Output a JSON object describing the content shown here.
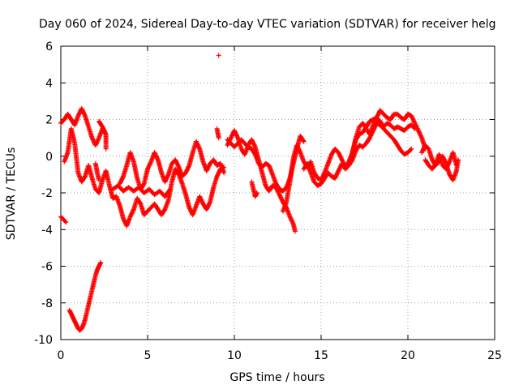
{
  "chart_data": {
    "type": "scatter",
    "title": "Day 060 of 2024, Sidereal Day-to-day VTEC variation (SDTVAR) for receiver helg",
    "xlabel": "GPS time / hours",
    "ylabel": "SDTVAR / TECUs",
    "xlim": [
      0,
      25
    ],
    "ylim": [
      -10,
      6
    ],
    "xticks": [
      0,
      5,
      10,
      15,
      20,
      25
    ],
    "yticks": [
      -10,
      -8,
      -6,
      -4,
      -2,
      0,
      2,
      4,
      6
    ],
    "grid": true,
    "marker": "+",
    "color": "#ff0000",
    "series": [
      {
        "name": "s1",
        "points": [
          [
            0.0,
            -3.3
          ],
          [
            0.1,
            -3.4
          ],
          [
            0.2,
            -3.5
          ],
          [
            0.3,
            -3.6
          ]
        ]
      },
      {
        "name": "s2",
        "points": [
          [
            0.5,
            -8.4
          ],
          [
            0.6,
            -8.6
          ],
          [
            0.7,
            -8.8
          ],
          [
            0.8,
            -9.0
          ],
          [
            0.9,
            -9.2
          ],
          [
            1.0,
            -9.4
          ],
          [
            1.1,
            -9.5
          ],
          [
            1.2,
            -9.4
          ],
          [
            1.3,
            -9.2
          ],
          [
            1.4,
            -8.9
          ],
          [
            1.5,
            -8.5
          ],
          [
            1.6,
            -8.1
          ],
          [
            1.7,
            -7.7
          ],
          [
            1.8,
            -7.3
          ],
          [
            1.9,
            -6.9
          ],
          [
            2.0,
            -6.5
          ],
          [
            2.1,
            -6.2
          ],
          [
            2.2,
            -6.0
          ],
          [
            2.3,
            -5.8
          ]
        ]
      },
      {
        "name": "s3",
        "points": [
          [
            0.0,
            1.8
          ],
          [
            0.2,
            2.0
          ],
          [
            0.4,
            2.3
          ],
          [
            0.6,
            2.0
          ],
          [
            0.8,
            1.7
          ],
          [
            1.0,
            2.2
          ],
          [
            1.2,
            2.6
          ],
          [
            1.4,
            2.2
          ],
          [
            1.6,
            1.6
          ],
          [
            1.8,
            1.0
          ],
          [
            2.0,
            0.6
          ],
          [
            2.2,
            1.0
          ],
          [
            2.4,
            1.5
          ],
          [
            2.5,
            1.3
          ]
        ]
      },
      {
        "name": "s4",
        "points": [
          [
            0.2,
            -0.3
          ],
          [
            0.4,
            0.2
          ],
          [
            0.6,
            1.5
          ],
          [
            0.8,
            0.7
          ],
          [
            1.0,
            -0.9
          ],
          [
            1.2,
            -1.4
          ],
          [
            1.4,
            -1.1
          ],
          [
            1.6,
            -0.5
          ],
          [
            1.8,
            -1.2
          ],
          [
            2.0,
            -1.8
          ],
          [
            2.2,
            -2.0
          ],
          [
            2.4,
            -1.3
          ],
          [
            2.6,
            -0.8
          ],
          [
            2.8,
            -1.6
          ],
          [
            3.0,
            -2.3
          ],
          [
            3.2,
            -2.2
          ],
          [
            3.4,
            -2.7
          ],
          [
            3.6,
            -3.4
          ],
          [
            3.8,
            -3.8
          ],
          [
            4.0,
            -3.3
          ],
          [
            4.2,
            -2.9
          ],
          [
            4.4,
            -2.3
          ],
          [
            4.6,
            -2.6
          ],
          [
            4.8,
            -3.2
          ],
          [
            5.0,
            -3.0
          ],
          [
            5.2,
            -2.8
          ],
          [
            5.4,
            -2.6
          ],
          [
            5.6,
            -2.9
          ],
          [
            5.8,
            -3.2
          ],
          [
            6.0,
            -2.9
          ],
          [
            6.2,
            -2.4
          ],
          [
            6.4,
            -1.4
          ],
          [
            6.6,
            -0.7
          ],
          [
            6.8,
            -1.0
          ],
          [
            7.0,
            -1.5
          ],
          [
            7.2,
            -2.1
          ],
          [
            7.4,
            -2.8
          ],
          [
            7.6,
            -3.2
          ],
          [
            7.8,
            -2.7
          ],
          [
            8.0,
            -2.2
          ],
          [
            8.2,
            -2.6
          ],
          [
            8.4,
            -2.9
          ],
          [
            8.6,
            -2.5
          ],
          [
            8.8,
            -1.7
          ],
          [
            9.0,
            -1.1
          ],
          [
            9.2,
            -0.7
          ],
          [
            9.4,
            -0.6
          ]
        ]
      },
      {
        "name": "s5",
        "points": [
          [
            3.4,
            -1.5
          ],
          [
            3.6,
            -1.1
          ],
          [
            3.8,
            -0.5
          ],
          [
            4.0,
            0.2
          ],
          [
            4.2,
            -0.3
          ],
          [
            4.4,
            -1.2
          ],
          [
            4.6,
            -1.8
          ],
          [
            4.8,
            -1.5
          ],
          [
            5.0,
            -0.7
          ],
          [
            5.2,
            -0.3
          ],
          [
            5.4,
            0.2
          ],
          [
            5.6,
            -0.2
          ],
          [
            5.8,
            -0.9
          ],
          [
            6.0,
            -1.4
          ],
          [
            6.2,
            -1.0
          ],
          [
            6.4,
            -0.4
          ],
          [
            6.6,
            -0.2
          ],
          [
            6.8,
            -0.6
          ],
          [
            7.0,
            -1.1
          ],
          [
            7.2,
            -0.9
          ],
          [
            7.4,
            -0.5
          ],
          [
            7.6,
            0.2
          ],
          [
            7.8,
            0.8
          ],
          [
            8.0,
            0.4
          ],
          [
            8.2,
            -0.3
          ],
          [
            8.4,
            -0.8
          ],
          [
            8.6,
            -0.4
          ],
          [
            8.8,
            -0.2
          ],
          [
            9.0,
            -0.5
          ],
          [
            9.2,
            -0.4
          ],
          [
            9.4,
            -0.9
          ]
        ]
      },
      {
        "name": "s6",
        "points": [
          [
            3.0,
            -1.8
          ],
          [
            3.3,
            -1.6
          ],
          [
            3.6,
            -1.9
          ],
          [
            3.9,
            -1.7
          ],
          [
            4.2,
            -1.9
          ],
          [
            4.5,
            -1.7
          ],
          [
            4.8,
            -2.0
          ],
          [
            5.1,
            -1.8
          ],
          [
            5.4,
            -2.1
          ],
          [
            5.7,
            -1.9
          ],
          [
            6.0,
            -2.2
          ],
          [
            6.3,
            -1.8
          ]
        ]
      },
      {
        "name": "s7",
        "points": [
          [
            9.6,
            0.6
          ],
          [
            9.8,
            1.0
          ],
          [
            10.0,
            1.4
          ],
          [
            10.2,
            1.0
          ],
          [
            10.4,
            0.4
          ],
          [
            10.6,
            0.1
          ],
          [
            10.8,
            0.6
          ],
          [
            11.0,
            0.9
          ],
          [
            11.2,
            0.5
          ],
          [
            11.4,
            -0.2
          ],
          [
            11.6,
            -0.9
          ],
          [
            11.8,
            -1.6
          ],
          [
            12.0,
            -1.9
          ],
          [
            12.2,
            -1.6
          ],
          [
            12.4,
            -1.7
          ],
          [
            12.6,
            -2.1
          ],
          [
            12.8,
            -2.5
          ],
          [
            13.0,
            -2.8
          ],
          [
            13.2,
            -3.3
          ],
          [
            13.4,
            -3.7
          ],
          [
            13.5,
            -4.1
          ]
        ]
      },
      {
        "name": "s8",
        "points": [
          [
            9.6,
            0.9
          ],
          [
            9.8,
            0.7
          ],
          [
            10.0,
            0.5
          ],
          [
            10.2,
            0.7
          ],
          [
            10.4,
            0.9
          ],
          [
            10.6,
            0.7
          ],
          [
            10.8,
            0.5
          ],
          [
            11.0,
            0.4
          ],
          [
            11.2,
            0.1
          ],
          [
            11.4,
            -0.4
          ],
          [
            11.6,
            -0.6
          ],
          [
            11.8,
            -0.4
          ],
          [
            12.0,
            -0.5
          ],
          [
            12.2,
            -1.0
          ],
          [
            12.4,
            -1.5
          ],
          [
            12.6,
            -1.8
          ],
          [
            12.8,
            -1.9
          ],
          [
            13.0,
            -1.7
          ],
          [
            13.2,
            -1.2
          ],
          [
            13.4,
            -0.4
          ],
          [
            13.6,
            0.4
          ],
          [
            13.8,
            1.1
          ],
          [
            14.0,
            0.8
          ]
        ]
      },
      {
        "name": "s9",
        "points": [
          [
            11.0,
            -1.4
          ],
          [
            11.1,
            -1.8
          ],
          [
            11.2,
            -2.2
          ],
          [
            11.3,
            -2.0
          ]
        ]
      },
      {
        "name": "s10",
        "points": [
          [
            12.8,
            -3.0
          ],
          [
            13.0,
            -2.5
          ],
          [
            13.2,
            -1.4
          ],
          [
            13.4,
            -0.1
          ],
          [
            13.6,
            0.6
          ],
          [
            13.8,
            0.2
          ],
          [
            14.0,
            -0.3
          ],
          [
            14.2,
            -0.6
          ],
          [
            14.4,
            -0.3
          ],
          [
            14.6,
            -0.9
          ],
          [
            14.8,
            -1.2
          ],
          [
            15.0,
            -1.3
          ],
          [
            15.2,
            -0.9
          ],
          [
            15.4,
            -0.4
          ],
          [
            15.6,
            0.1
          ],
          [
            15.8,
            0.4
          ],
          [
            16.0,
            0.2
          ],
          [
            16.2,
            -0.2
          ],
          [
            16.4,
            -0.6
          ],
          [
            16.6,
            -0.3
          ],
          [
            16.8,
            0.2
          ],
          [
            17.0,
            0.9
          ],
          [
            17.2,
            1.2
          ],
          [
            17.4,
            1.3
          ],
          [
            17.6,
            1.6
          ],
          [
            17.8,
            1.9
          ],
          [
            18.0,
            2.0
          ],
          [
            18.2,
            2.1
          ],
          [
            18.4,
            2.5
          ],
          [
            18.6,
            2.3
          ],
          [
            18.8,
            2.1
          ],
          [
            19.0,
            2.0
          ],
          [
            19.2,
            2.3
          ],
          [
            19.4,
            2.3
          ],
          [
            19.6,
            2.1
          ],
          [
            19.8,
            2.0
          ],
          [
            20.0,
            2.3
          ],
          [
            20.2,
            2.2
          ],
          [
            20.4,
            1.8
          ],
          [
            20.6,
            1.4
          ],
          [
            20.8,
            1.0
          ],
          [
            21.0,
            0.4
          ]
        ]
      },
      {
        "name": "s11",
        "points": [
          [
            14.0,
            -0.7
          ],
          [
            14.2,
            -0.4
          ],
          [
            14.4,
            -0.9
          ],
          [
            14.6,
            -1.4
          ],
          [
            14.8,
            -1.6
          ],
          [
            15.0,
            -1.5
          ],
          [
            15.2,
            -1.2
          ],
          [
            15.4,
            -0.9
          ],
          [
            15.6,
            -1.1
          ],
          [
            15.8,
            -1.2
          ],
          [
            16.0,
            -0.8
          ],
          [
            16.2,
            -0.4
          ],
          [
            16.4,
            -0.7
          ],
          [
            16.6,
            -0.5
          ],
          [
            16.8,
            -0.2
          ],
          [
            17.0,
            0.3
          ],
          [
            17.2,
            0.6
          ],
          [
            17.4,
            0.5
          ],
          [
            17.6,
            0.7
          ],
          [
            17.8,
            1.0
          ],
          [
            18.0,
            1.4
          ],
          [
            18.2,
            1.8
          ],
          [
            18.4,
            1.7
          ],
          [
            18.6,
            1.5
          ],
          [
            18.8,
            1.3
          ],
          [
            19.0,
            1.1
          ],
          [
            19.2,
            0.9
          ],
          [
            19.4,
            0.6
          ],
          [
            19.6,
            0.3
          ],
          [
            19.8,
            0.1
          ],
          [
            20.0,
            0.2
          ],
          [
            20.2,
            0.4
          ]
        ]
      },
      {
        "name": "s12",
        "points": [
          [
            16.6,
            -0.4
          ],
          [
            16.8,
            0.2
          ],
          [
            17.0,
            1.0
          ],
          [
            17.2,
            1.6
          ],
          [
            17.4,
            1.8
          ],
          [
            17.6,
            1.5
          ],
          [
            17.8,
            1.2
          ],
          [
            18.0,
            1.7
          ],
          [
            18.2,
            2.1
          ],
          [
            18.4,
            1.9
          ],
          [
            18.6,
            1.6
          ],
          [
            18.8,
            1.8
          ],
          [
            19.0,
            1.7
          ],
          [
            19.2,
            1.5
          ],
          [
            19.4,
            1.6
          ],
          [
            19.6,
            1.5
          ],
          [
            19.8,
            1.4
          ],
          [
            20.0,
            1.6
          ],
          [
            20.2,
            1.7
          ],
          [
            20.4,
            1.5
          ]
        ]
      },
      {
        "name": "s13",
        "points": [
          [
            20.8,
            0.2
          ],
          [
            21.0,
            0.6
          ],
          [
            21.2,
            0.4
          ],
          [
            21.4,
            -0.2
          ],
          [
            21.6,
            -0.5
          ],
          [
            21.8,
            -0.3
          ],
          [
            22.0,
            0.0
          ],
          [
            22.2,
            -0.4
          ],
          [
            22.4,
            -1.0
          ],
          [
            22.6,
            -1.3
          ],
          [
            22.8,
            -0.8
          ],
          [
            22.9,
            -0.2
          ]
        ]
      },
      {
        "name": "s14",
        "points": [
          [
            21.0,
            -0.2
          ],
          [
            21.2,
            -0.5
          ],
          [
            21.4,
            -0.7
          ],
          [
            21.6,
            -0.4
          ],
          [
            21.8,
            0.1
          ],
          [
            22.0,
            -0.5
          ],
          [
            22.2,
            -0.7
          ],
          [
            22.4,
            -0.3
          ],
          [
            22.6,
            0.2
          ],
          [
            22.8,
            -0.5
          ]
        ]
      },
      {
        "name": "s15",
        "points": [
          [
            2.2,
            1.9
          ],
          [
            2.4,
            1.6
          ],
          [
            2.6,
            1.2
          ],
          [
            2.6,
            0.4
          ]
        ]
      },
      {
        "name": "s16",
        "points": [
          [
            2.0,
            -0.4
          ],
          [
            2.1,
            -0.9
          ],
          [
            2.2,
            -1.3
          ]
        ]
      },
      {
        "name": "s17",
        "points": [
          [
            9.1,
            5.5
          ]
        ]
      },
      {
        "name": "s18",
        "points": [
          [
            9.0,
            1.5
          ],
          [
            9.1,
            1.0
          ]
        ]
      }
    ]
  }
}
